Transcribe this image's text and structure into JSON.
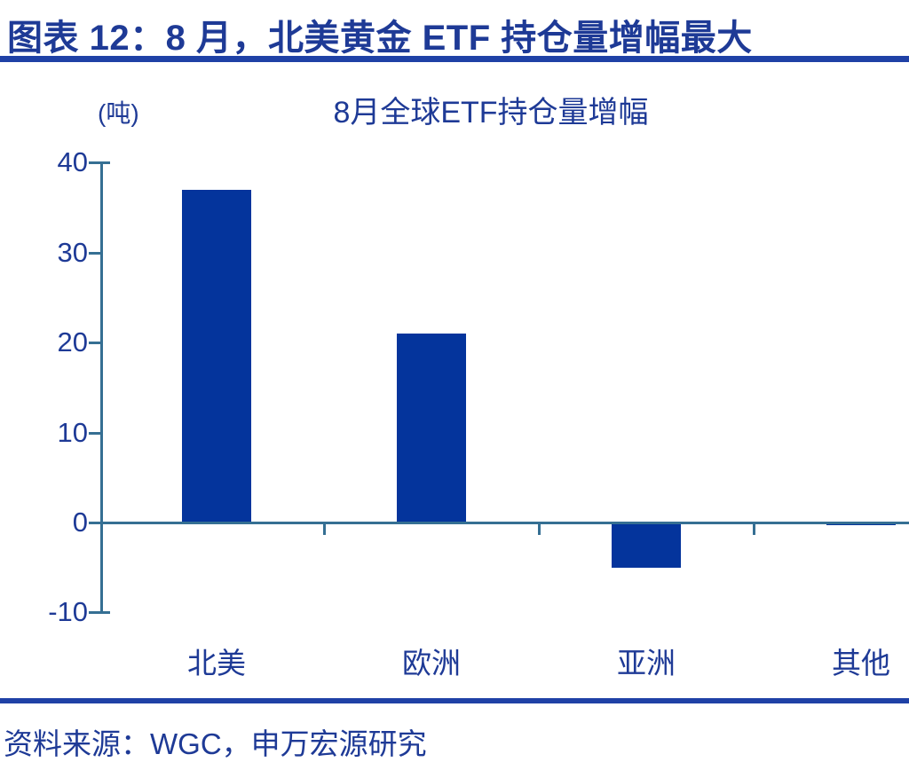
{
  "header": {
    "title": "图表 12：8 月，北美黄金 ETF 持仓量增幅最大"
  },
  "chart_data": {
    "type": "bar",
    "title": "8月全球ETF持仓量增幅",
    "unit_label": "(吨)",
    "categories": [
      "北美",
      "欧洲",
      "亚洲",
      "其他"
    ],
    "values": [
      37,
      21,
      -5,
      -0.3
    ],
    "yticks": [
      40,
      30,
      20,
      10,
      0,
      -10
    ],
    "ylim": [
      -10,
      40
    ],
    "xlabel": "",
    "ylabel": "吨",
    "grid": false,
    "legend": false,
    "colors": {
      "bar": "#04349c",
      "axis": "#356f93",
      "text": "#1e3a96",
      "rule": "#1f41a6"
    }
  },
  "footer": {
    "source": "资料来源：WGC，申万宏源研究"
  }
}
